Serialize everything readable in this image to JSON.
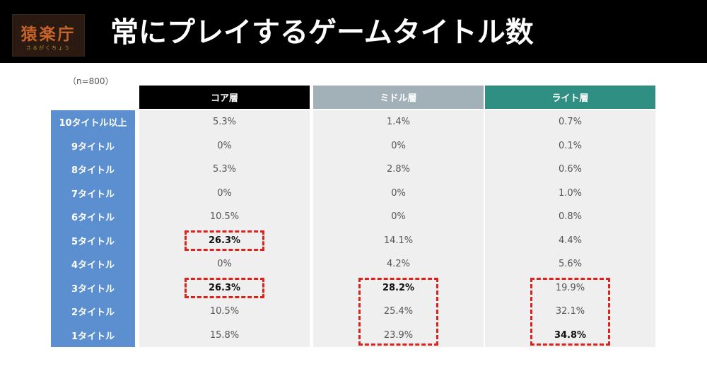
{
  "logo": {
    "main": "猿楽庁",
    "sub": "さるがくちょう"
  },
  "title": "常にプレイするゲームタイトル数",
  "sample_note": "（n=800）",
  "columns": [
    {
      "label": "コア層",
      "color": "#000000"
    },
    {
      "label": "ミドル層",
      "color": "#a2b1b7"
    },
    {
      "label": "ライト層",
      "color": "#2f8f83"
    }
  ],
  "label_color": "#5b8fd0",
  "highlight_color": "#e0201a",
  "rows": [
    {
      "label": "10タイトル以上",
      "values": [
        "5.3%",
        "1.4%",
        "0.7%"
      ]
    },
    {
      "label": "9タイトル",
      "values": [
        "0%",
        "0%",
        "0.1%"
      ]
    },
    {
      "label": "8タイトル",
      "values": [
        "5.3%",
        "2.8%",
        "0.6%"
      ]
    },
    {
      "label": "7タイトル",
      "values": [
        "0%",
        "0%",
        "1.0%"
      ]
    },
    {
      "label": "6タイトル",
      "values": [
        "10.5%",
        "0%",
        "0.8%"
      ]
    },
    {
      "label": "5タイトル",
      "values": [
        "26.3%",
        "14.1%",
        "4.4%"
      ]
    },
    {
      "label": "4タイトル",
      "values": [
        "0%",
        "4.2%",
        "5.6%"
      ]
    },
    {
      "label": "3タイトル",
      "values": [
        "26.3%",
        "28.2%",
        "19.9%"
      ]
    },
    {
      "label": "2タイトル",
      "values": [
        "10.5%",
        "25.4%",
        "32.1%"
      ]
    },
    {
      "label": "1タイトル",
      "values": [
        "15.8%",
        "23.9%",
        "34.8%"
      ]
    }
  ],
  "bold_cells": [
    [
      5,
      0
    ],
    [
      7,
      0
    ],
    [
      7,
      1
    ],
    [
      9,
      2
    ]
  ],
  "highlights": [
    {
      "column": 0,
      "from_row": 5,
      "to_row": 5
    },
    {
      "column": 0,
      "from_row": 7,
      "to_row": 7
    },
    {
      "column": 1,
      "from_row": 7,
      "to_row": 9
    },
    {
      "column": 2,
      "from_row": 7,
      "to_row": 9
    }
  ]
}
